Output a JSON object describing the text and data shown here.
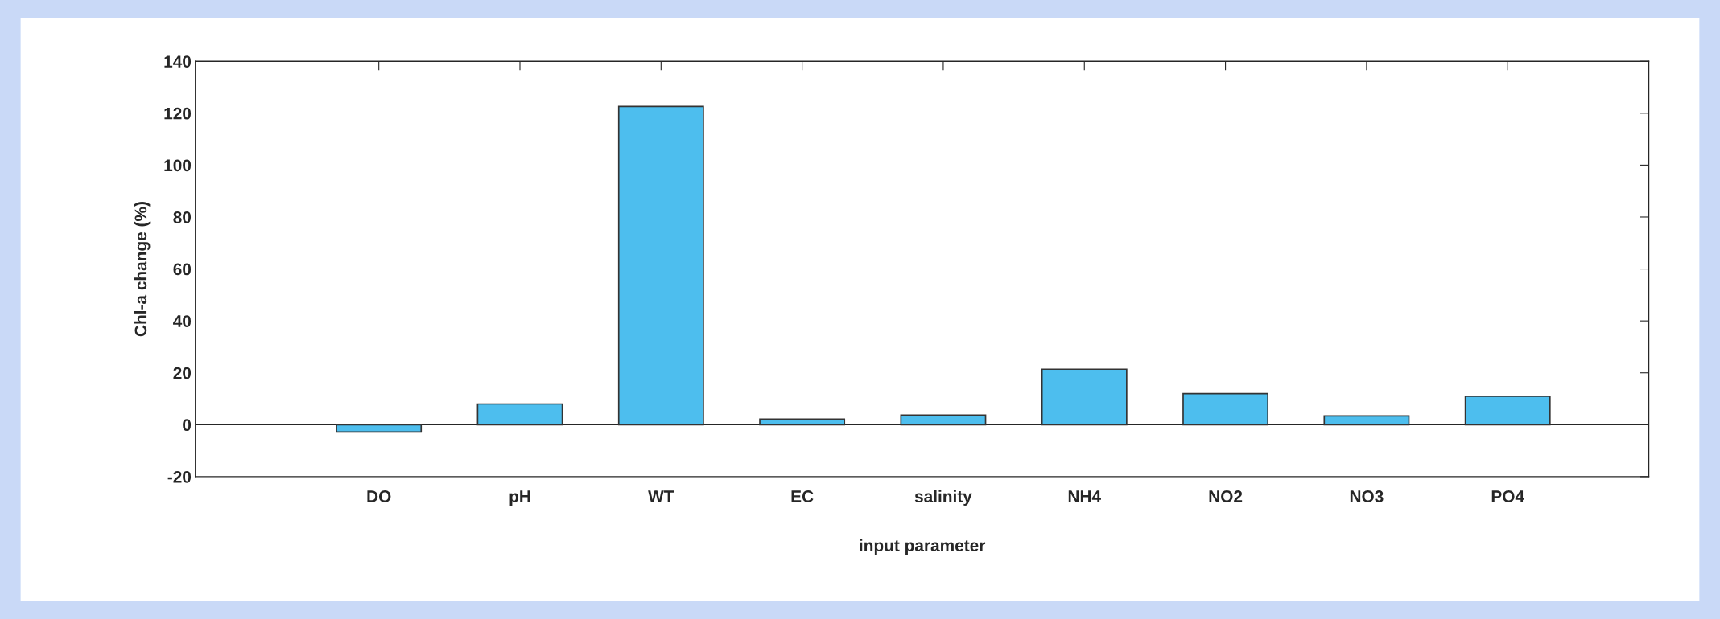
{
  "chart_data": {
    "type": "bar",
    "xlabel": "input parameter",
    "ylabel": "Chl-a change (%)",
    "categories": [
      "DO",
      "pH",
      "WT",
      "EC",
      "salinity",
      "NH4",
      "NO2",
      "NO3",
      "PO4"
    ],
    "values": [
      -2.8,
      8,
      122.6,
      2.2,
      3.7,
      21.4,
      12,
      3.4,
      11
    ],
    "color": "#4dbeee",
    "ylim": [
      -20,
      140
    ],
    "yticks": [
      -20,
      0,
      20,
      40,
      60,
      80,
      100,
      120,
      140
    ],
    "ref_lines": [
      {
        "axis": "y",
        "value": 0,
        "color": "#262626"
      }
    ]
  }
}
